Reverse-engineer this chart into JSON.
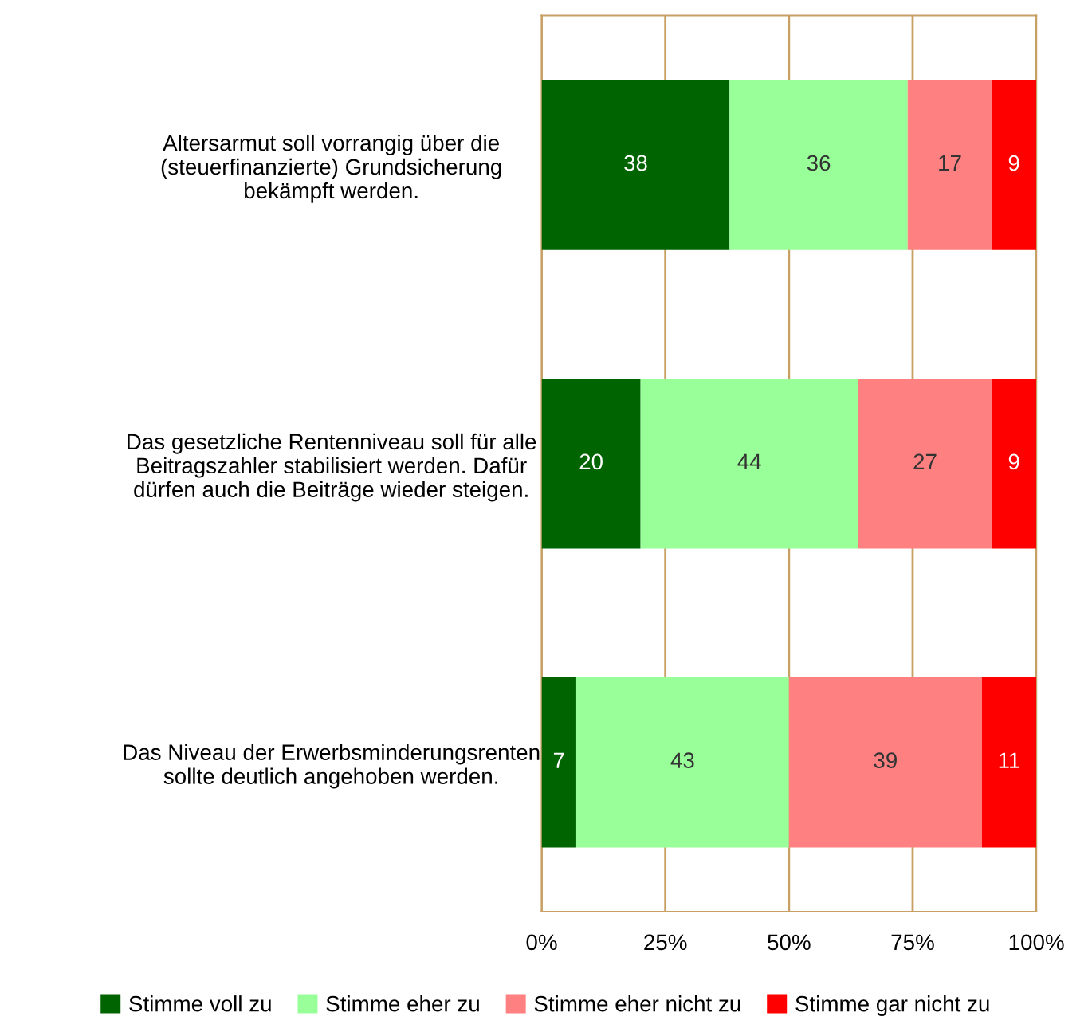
{
  "chart_data": {
    "type": "bar",
    "orientation": "horizontal",
    "stacked": true,
    "data_labels": true,
    "grid": "x",
    "legend": "bottom",
    "categories": [
      "Altersarmut soll vorrangig über die\n(steuerfinanzierte) Grundsicherung\nbekämpft werden.",
      "Das gesetzliche Rentenniveau soll für alle\nBeitragszahler stabilisiert werden. Dafür\ndürfen auch die Beiträge wieder steigen.",
      "Das Niveau der Erwerbsminderungsrenten\nsollte deutlich angehoben werden."
    ],
    "series": [
      {
        "name": "Stimme voll zu",
        "color": "#006400",
        "values": [
          38,
          20,
          7
        ]
      },
      {
        "name": "Stimme eher zu",
        "color": "#99ff99",
        "values": [
          36,
          44,
          43
        ]
      },
      {
        "name": "Stimme eher nicht zu",
        "color": "#ff8080",
        "values": [
          17,
          27,
          39
        ]
      },
      {
        "name": "Stimme gar nicht zu",
        "color": "#ff0000",
        "values": [
          9,
          9,
          11
        ]
      }
    ],
    "xlim": [
      0,
      100
    ],
    "xticks": [
      {
        "value": 0,
        "label": "0%"
      },
      {
        "value": 25,
        "label": "25%"
      },
      {
        "value": 50,
        "label": "50%"
      },
      {
        "value": 75,
        "label": "75%"
      },
      {
        "value": 100,
        "label": "100%"
      }
    ]
  }
}
